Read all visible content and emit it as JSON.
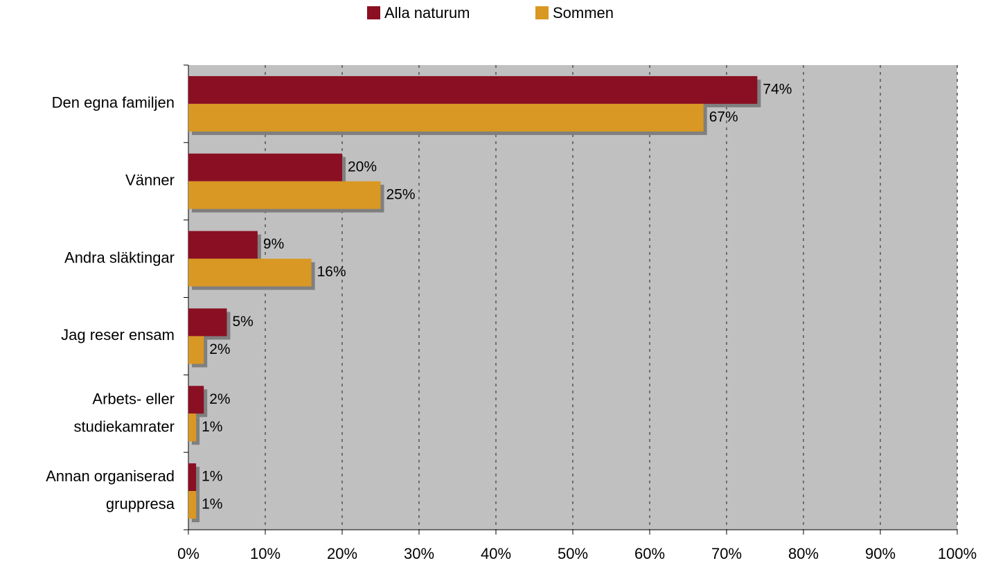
{
  "chart_data": {
    "type": "bar",
    "orientation": "horizontal",
    "categories": [
      "Den egna familjen",
      "Vänner",
      "Andra släktingar",
      "Jag reser ensam",
      "Arbets- eller\nstudiekamrater",
      "Annan organiserad\ngruppresa"
    ],
    "series": [
      {
        "name": "Alla naturum",
        "color": "#8b0f22",
        "values": [
          74,
          20,
          9,
          5,
          2,
          1
        ],
        "value_labels": [
          "74%",
          "20%",
          "9%",
          "5%",
          "2%",
          "1%"
        ]
      },
      {
        "name": "Sommen",
        "color": "#d99823",
        "values": [
          67,
          25,
          16,
          2,
          1,
          1
        ],
        "value_labels": [
          "67%",
          "25%",
          "16%",
          "2%",
          "1%",
          "1%"
        ]
      }
    ],
    "xlim": [
      0,
      100
    ],
    "xticks": [
      {
        "value": 0,
        "label": "0%"
      },
      {
        "value": 10,
        "label": "10%"
      },
      {
        "value": 20,
        "label": "20%"
      },
      {
        "value": 30,
        "label": "30%"
      },
      {
        "value": 40,
        "label": "40%"
      },
      {
        "value": 50,
        "label": "50%"
      },
      {
        "value": 60,
        "label": "60%"
      },
      {
        "value": 70,
        "label": "70%"
      },
      {
        "value": 80,
        "label": "80%"
      },
      {
        "value": 90,
        "label": "90%"
      },
      {
        "value": 100,
        "label": "100%"
      }
    ],
    "grid": true,
    "legend": "top"
  }
}
